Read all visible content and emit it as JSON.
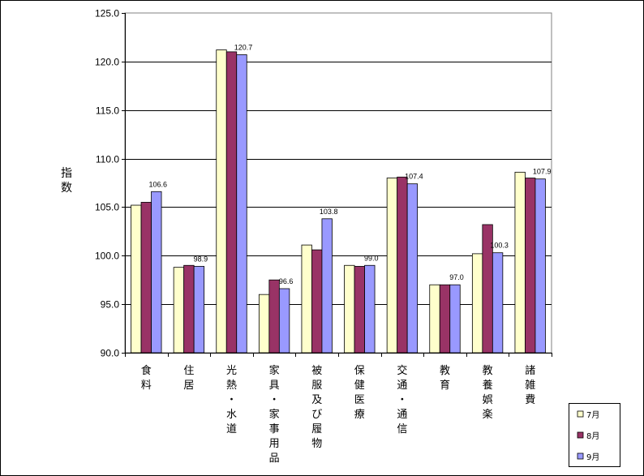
{
  "chart_data": {
    "type": "bar",
    "title": "",
    "xlabel": "",
    "ylabel": "指数",
    "ylim": [
      90,
      125
    ],
    "ytick_step": 5,
    "grid": true,
    "legend_position": "bottom-right",
    "categories": [
      "食料",
      "住居",
      "光熱・水道",
      "家具・家事用品",
      "被服及び履物",
      "保健医療",
      "交通・通信",
      "教育",
      "教養娯楽",
      "諸雑費"
    ],
    "series": [
      {
        "name": "7月",
        "color": "#ffffcc",
        "values": [
          105.2,
          98.8,
          121.2,
          96.0,
          101.1,
          99.0,
          108.0,
          97.0,
          100.2,
          108.6
        ]
      },
      {
        "name": "8月",
        "color": "#993366",
        "values": [
          105.5,
          99.0,
          121.0,
          97.5,
          100.6,
          98.9,
          108.1,
          97.0,
          103.2,
          108.0
        ]
      },
      {
        "name": "9月",
        "color": "#9999ff",
        "values": [
          106.6,
          98.9,
          120.7,
          96.6,
          103.8,
          99.0,
          107.4,
          97.0,
          100.3,
          107.9
        ]
      }
    ],
    "data_labels": {
      "series": "9月",
      "values": [
        "106.6",
        "98.9",
        "120.7",
        "96.6",
        "103.8",
        "99.0",
        "107.4",
        "97.0",
        "100.3",
        "107.9"
      ]
    }
  }
}
